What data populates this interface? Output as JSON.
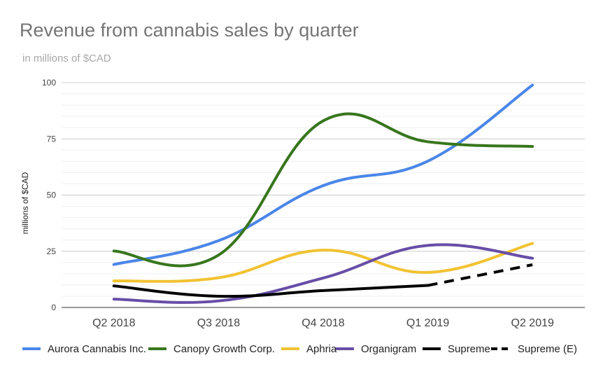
{
  "chart_data": {
    "type": "line",
    "title": "Revenue from cannabis sales by quarter",
    "subtitle": "in millions of $CAD",
    "xlabel": "",
    "ylabel": "millions of $CAD",
    "categories": [
      "Q2 2018",
      "Q3 2018",
      "Q4 2018",
      "Q1 2019",
      "Q2 2019"
    ],
    "ylim": [
      0,
      100
    ],
    "yticks": [
      0,
      25,
      50,
      75,
      100
    ],
    "grid": true,
    "legend_position": "bottom",
    "series": [
      {
        "name": "Aurora Cannabis Inc.",
        "color": "#4a86e8",
        "dash": "solid",
        "values": [
          19.1,
          29.7,
          54.2,
          65.1,
          98.9
        ]
      },
      {
        "name": "Canopy Growth Corp.",
        "color": "#38761d",
        "dash": "solid",
        "values": [
          25.1,
          23.3,
          83.0,
          73.7,
          71.6
        ]
      },
      {
        "name": "Aphria",
        "color": "#f1c232",
        "dash": "solid",
        "values": [
          11.8,
          13.2,
          25.5,
          15.6,
          28.5
        ]
      },
      {
        "name": "Organigram",
        "color": "#674ea7",
        "dash": "solid",
        "values": [
          3.7,
          2.9,
          13.1,
          27.6,
          21.9
        ]
      },
      {
        "name": "Supreme",
        "color": "#000000",
        "dash": "solid",
        "values": [
          9.6,
          5.0,
          7.5,
          9.8,
          null
        ]
      },
      {
        "name": "Supreme (E)",
        "color": "#000000",
        "dash": "dashed",
        "values": [
          null,
          null,
          null,
          9.8,
          19.0
        ]
      }
    ]
  }
}
